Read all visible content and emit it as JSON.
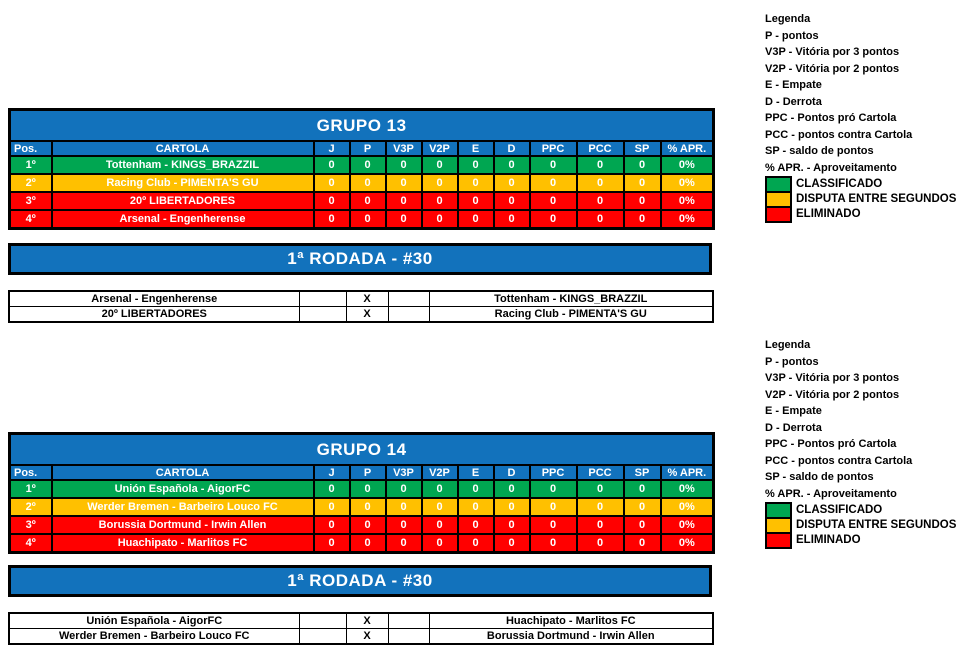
{
  "colors": {
    "blue": "#1272BC",
    "green": "#00A651",
    "yellow": "#FFC000",
    "red": "#FF0000"
  },
  "legend": {
    "title": "Legenda",
    "entries": [
      "P - pontos",
      "V3P - Vitória por 3 pontos",
      "V2P - Vitória por 2 pontos",
      "E - Empate",
      "D - Derrota",
      "PPC - Pontos pró Cartola",
      "PCC - pontos contra Cartola",
      "SP - saldo de pontos",
      "% APR. - Aproveitamento"
    ],
    "classes": [
      {
        "status": "classificado",
        "label": "CLASSIFICADO"
      },
      {
        "status": "disputa",
        "label": "DISPUTA ENTRE SEGUNDOS"
      },
      {
        "status": "eliminado",
        "label": "ELIMINADO"
      }
    ]
  },
  "groups": [
    {
      "title": "GRUPO 13",
      "columns": [
        "Pos.",
        "CARTOLA",
        "J",
        "P",
        "V3P",
        "V2P",
        "E",
        "D",
        "PPC",
        "PCC",
        "SP",
        "% APR."
      ],
      "rows": [
        {
          "pos": "1º",
          "cartola": "Tottenham - KINGS_BRAZZIL",
          "status": "classificado",
          "values": [
            "0",
            "0",
            "0",
            "0",
            "0",
            "0",
            "0",
            "0",
            "0"
          ],
          "apr": "0%"
        },
        {
          "pos": "2º",
          "cartola": "Racing Club - PIMENTA'S GU",
          "status": "disputa",
          "values": [
            "0",
            "0",
            "0",
            "0",
            "0",
            "0",
            "0",
            "0",
            "0"
          ],
          "apr": "0%"
        },
        {
          "pos": "3º",
          "cartola": "20º LIBERTADORES",
          "status": "eliminado",
          "values": [
            "0",
            "0",
            "0",
            "0",
            "0",
            "0",
            "0",
            "0",
            "0"
          ],
          "apr": "0%"
        },
        {
          "pos": "4º",
          "cartola": "Arsenal - Engenherense",
          "status": "eliminado",
          "values": [
            "0",
            "0",
            "0",
            "0",
            "0",
            "0",
            "0",
            "0",
            "0"
          ],
          "apr": "0%"
        }
      ],
      "round": {
        "title": "1ª RODADA - #30",
        "matches": [
          {
            "home": "Arsenal - Engenherense",
            "x": "X",
            "away": "Tottenham - KINGS_BRAZZIL"
          },
          {
            "home": "20º LIBERTADORES",
            "x": "X",
            "away": "Racing Club - PIMENTA'S GU"
          }
        ]
      }
    },
    {
      "title": "GRUPO 14",
      "columns": [
        "Pos.",
        "CARTOLA",
        "J",
        "P",
        "V3P",
        "V2P",
        "E",
        "D",
        "PPC",
        "PCC",
        "SP",
        "% APR."
      ],
      "rows": [
        {
          "pos": "1º",
          "cartola": "Unión Española - AigorFC",
          "status": "classificado",
          "values": [
            "0",
            "0",
            "0",
            "0",
            "0",
            "0",
            "0",
            "0",
            "0"
          ],
          "apr": "0%"
        },
        {
          "pos": "2º",
          "cartola": "Werder Bremen - Barbeiro Louco FC",
          "status": "disputa",
          "values": [
            "0",
            "0",
            "0",
            "0",
            "0",
            "0",
            "0",
            "0",
            "0"
          ],
          "apr": "0%"
        },
        {
          "pos": "3º",
          "cartola": "Borussia Dortmund - Irwin Allen",
          "status": "eliminado",
          "values": [
            "0",
            "0",
            "0",
            "0",
            "0",
            "0",
            "0",
            "0",
            "0"
          ],
          "apr": "0%"
        },
        {
          "pos": "4º",
          "cartola": "Huachipato - Marlitos FC",
          "status": "eliminado",
          "values": [
            "0",
            "0",
            "0",
            "0",
            "0",
            "0",
            "0",
            "0",
            "0"
          ],
          "apr": "0%"
        }
      ],
      "round": {
        "title": "1ª RODADA - #30",
        "matches": [
          {
            "home": "Unión Española - AigorFC",
            "x": "X",
            "away": "Huachipato - Marlitos FC"
          },
          {
            "home": "Werder Bremen - Barbeiro Louco FC",
            "x": "X",
            "away": "Borussia Dortmund - Irwin Allen"
          }
        ]
      }
    }
  ]
}
